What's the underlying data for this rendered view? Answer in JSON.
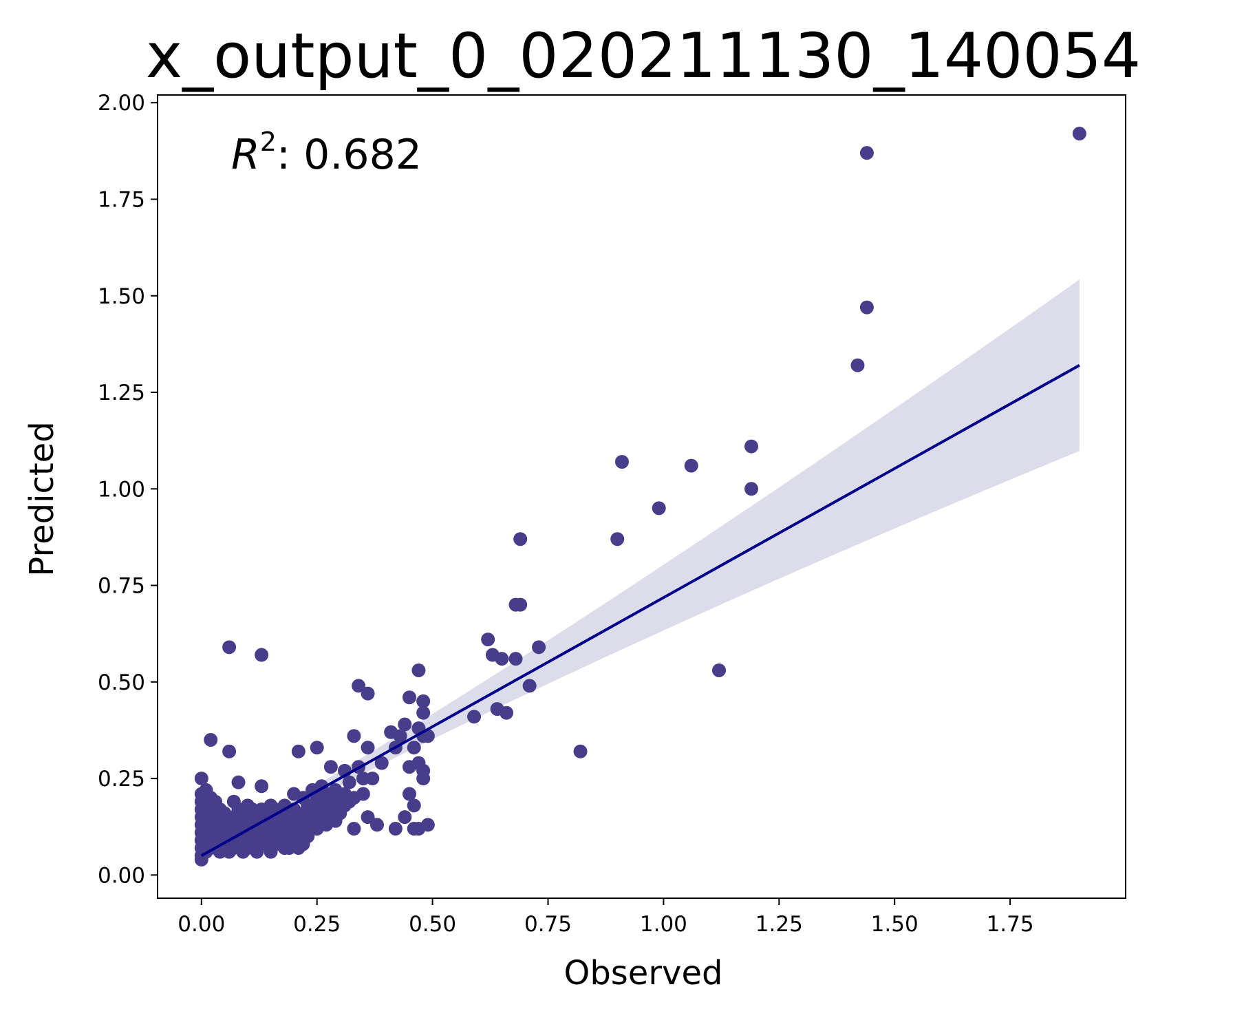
{
  "chart_data": {
    "type": "scatter",
    "title": "x_output_0_020211130_140054",
    "xlabel": "Observed",
    "ylabel": "Predicted",
    "xlim": [
      -0.095,
      2.0
    ],
    "ylim": [
      -0.06,
      2.02
    ],
    "xticks": [
      "0.00",
      "0.25",
      "0.50",
      "0.75",
      "1.00",
      "1.25",
      "1.50",
      "1.75"
    ],
    "xtick_values": [
      0,
      0.25,
      0.5,
      0.75,
      1.0,
      1.25,
      1.5,
      1.75
    ],
    "yticks": [
      "0.00",
      "0.25",
      "0.50",
      "0.75",
      "1.00",
      "1.25",
      "1.50",
      "1.75",
      "2.00"
    ],
    "ytick_values": [
      0,
      0.25,
      0.5,
      0.75,
      1.0,
      1.25,
      1.5,
      1.75,
      2.0
    ],
    "grid": false,
    "annotation": {
      "prefix": "R",
      "superscript": "2",
      "text": ": 0.682"
    },
    "colors": {
      "points": "#483d8b",
      "line": "#00008b",
      "band": "#dcdcea"
    },
    "regression": {
      "x": [
        0.0,
        1.9
      ],
      "y": [
        0.05,
        1.32
      ],
      "band_upper_end": 1.5,
      "band_lower_end": 1.08
    },
    "points": [
      [
        1.9,
        1.92
      ],
      [
        1.44,
        1.87
      ],
      [
        1.44,
        1.47
      ],
      [
        1.42,
        1.32
      ],
      [
        1.19,
        1.11
      ],
      [
        1.19,
        1.0
      ],
      [
        1.06,
        1.06
      ],
      [
        0.99,
        0.95
      ],
      [
        0.91,
        1.07
      ],
      [
        0.9,
        0.87
      ],
      [
        1.12,
        0.53
      ],
      [
        0.82,
        0.32
      ],
      [
        0.69,
        0.87
      ],
      [
        0.69,
        0.7
      ],
      [
        0.68,
        0.7
      ],
      [
        0.73,
        0.59
      ],
      [
        0.71,
        0.49
      ],
      [
        0.62,
        0.61
      ],
      [
        0.63,
        0.57
      ],
      [
        0.65,
        0.56
      ],
      [
        0.68,
        0.56
      ],
      [
        0.59,
        0.41
      ],
      [
        0.64,
        0.43
      ],
      [
        0.66,
        0.42
      ],
      [
        0.06,
        0.59
      ],
      [
        0.13,
        0.57
      ],
      [
        0.47,
        0.53
      ],
      [
        0.34,
        0.49
      ],
      [
        0.36,
        0.47
      ],
      [
        0.45,
        0.46
      ],
      [
        0.48,
        0.45
      ],
      [
        0.48,
        0.42
      ],
      [
        0.02,
        0.35
      ],
      [
        0.06,
        0.32
      ],
      [
        0.33,
        0.36
      ],
      [
        0.41,
        0.37
      ],
      [
        0.43,
        0.36
      ],
      [
        0.36,
        0.33
      ],
      [
        0.25,
        0.33
      ],
      [
        0.21,
        0.32
      ],
      [
        0.44,
        0.39
      ],
      [
        0.47,
        0.38
      ],
      [
        0.48,
        0.36
      ],
      [
        0.49,
        0.36
      ],
      [
        0.46,
        0.33
      ],
      [
        0.47,
        0.29
      ],
      [
        0.45,
        0.28
      ],
      [
        0.48,
        0.27
      ],
      [
        0.48,
        0.25
      ],
      [
        0.45,
        0.21
      ],
      [
        0.46,
        0.18
      ],
      [
        0.44,
        0.15
      ],
      [
        0.49,
        0.13
      ],
      [
        0.46,
        0.12
      ],
      [
        0.47,
        0.12
      ],
      [
        0.42,
        0.12
      ],
      [
        0.36,
        0.15
      ],
      [
        0.38,
        0.13
      ],
      [
        0.33,
        0.12
      ],
      [
        0.31,
        0.27
      ],
      [
        0.28,
        0.28
      ],
      [
        0.26,
        0.23
      ],
      [
        0.32,
        0.24
      ],
      [
        0.35,
        0.25
      ],
      [
        0.37,
        0.25
      ],
      [
        0.34,
        0.28
      ],
      [
        0.39,
        0.29
      ],
      [
        0.42,
        0.33
      ],
      [
        0.0,
        0.25
      ],
      [
        0.0,
        0.21
      ],
      [
        0.0,
        0.19
      ],
      [
        0.0,
        0.17
      ],
      [
        0.0,
        0.15
      ],
      [
        0.0,
        0.13
      ],
      [
        0.0,
        0.11
      ],
      [
        0.0,
        0.09
      ],
      [
        0.0,
        0.07
      ],
      [
        0.0,
        0.05
      ],
      [
        0.0,
        0.04
      ],
      [
        0.01,
        0.22
      ],
      [
        0.01,
        0.18
      ],
      [
        0.01,
        0.14
      ],
      [
        0.01,
        0.1
      ],
      [
        0.01,
        0.06
      ],
      [
        0.02,
        0.2
      ],
      [
        0.02,
        0.16
      ],
      [
        0.02,
        0.12
      ],
      [
        0.02,
        0.08
      ],
      [
        0.03,
        0.19
      ],
      [
        0.03,
        0.15
      ],
      [
        0.03,
        0.11
      ],
      [
        0.03,
        0.07
      ],
      [
        0.04,
        0.17
      ],
      [
        0.04,
        0.13
      ],
      [
        0.04,
        0.09
      ],
      [
        0.05,
        0.16
      ],
      [
        0.05,
        0.12
      ],
      [
        0.05,
        0.08
      ],
      [
        0.06,
        0.14
      ],
      [
        0.06,
        0.1
      ],
      [
        0.07,
        0.19
      ],
      [
        0.07,
        0.15
      ],
      [
        0.07,
        0.11
      ],
      [
        0.07,
        0.07
      ],
      [
        0.08,
        0.24
      ],
      [
        0.08,
        0.17
      ],
      [
        0.08,
        0.13
      ],
      [
        0.08,
        0.09
      ],
      [
        0.09,
        0.16
      ],
      [
        0.09,
        0.12
      ],
      [
        0.09,
        0.08
      ],
      [
        0.1,
        0.18
      ],
      [
        0.1,
        0.14
      ],
      [
        0.1,
        0.1
      ],
      [
        0.1,
        0.07
      ],
      [
        0.11,
        0.17
      ],
      [
        0.11,
        0.13
      ],
      [
        0.11,
        0.09
      ],
      [
        0.12,
        0.15
      ],
      [
        0.12,
        0.11
      ],
      [
        0.12,
        0.08
      ],
      [
        0.13,
        0.23
      ],
      [
        0.13,
        0.17
      ],
      [
        0.13,
        0.13
      ],
      [
        0.13,
        0.09
      ],
      [
        0.14,
        0.16
      ],
      [
        0.14,
        0.12
      ],
      [
        0.14,
        0.08
      ],
      [
        0.15,
        0.18
      ],
      [
        0.15,
        0.14
      ],
      [
        0.15,
        0.1
      ],
      [
        0.15,
        0.07
      ],
      [
        0.16,
        0.17
      ],
      [
        0.16,
        0.13
      ],
      [
        0.16,
        0.09
      ],
      [
        0.17,
        0.15
      ],
      [
        0.17,
        0.11
      ],
      [
        0.17,
        0.08
      ],
      [
        0.18,
        0.18
      ],
      [
        0.18,
        0.14
      ],
      [
        0.18,
        0.1
      ],
      [
        0.18,
        0.07
      ],
      [
        0.19,
        0.16
      ],
      [
        0.19,
        0.12
      ],
      [
        0.19,
        0.09
      ],
      [
        0.2,
        0.21
      ],
      [
        0.2,
        0.17
      ],
      [
        0.2,
        0.13
      ],
      [
        0.2,
        0.08
      ],
      [
        0.21,
        0.15
      ],
      [
        0.21,
        0.11
      ],
      [
        0.21,
        0.07
      ],
      [
        0.22,
        0.2
      ],
      [
        0.22,
        0.16
      ],
      [
        0.22,
        0.12
      ],
      [
        0.23,
        0.18
      ],
      [
        0.23,
        0.14
      ],
      [
        0.23,
        0.1
      ],
      [
        0.24,
        0.22
      ],
      [
        0.24,
        0.17
      ],
      [
        0.24,
        0.13
      ],
      [
        0.25,
        0.2
      ],
      [
        0.25,
        0.16
      ],
      [
        0.25,
        0.12
      ],
      [
        0.26,
        0.19
      ],
      [
        0.26,
        0.15
      ],
      [
        0.27,
        0.21
      ],
      [
        0.27,
        0.17
      ],
      [
        0.27,
        0.13
      ],
      [
        0.28,
        0.2
      ],
      [
        0.28,
        0.16
      ],
      [
        0.29,
        0.22
      ],
      [
        0.29,
        0.18
      ],
      [
        0.29,
        0.14
      ],
      [
        0.3,
        0.2
      ],
      [
        0.3,
        0.16
      ],
      [
        0.31,
        0.21
      ],
      [
        0.31,
        0.18
      ],
      [
        0.32,
        0.19
      ],
      [
        0.33,
        0.2
      ],
      [
        0.35,
        0.21
      ],
      [
        0.04,
        0.06
      ],
      [
        0.06,
        0.06
      ],
      [
        0.09,
        0.06
      ],
      [
        0.12,
        0.06
      ],
      [
        0.15,
        0.06
      ],
      [
        0.19,
        0.07
      ],
      [
        0.22,
        0.08
      ]
    ]
  }
}
